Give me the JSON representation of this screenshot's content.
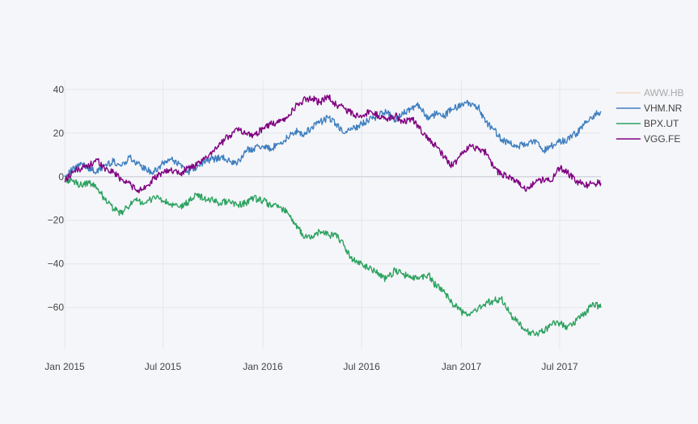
{
  "chart_data": {
    "type": "line",
    "title": "",
    "xlabel": "",
    "ylabel": "",
    "x_range": [
      "2015-01-01",
      "2017-09-15"
    ],
    "ylim": [
      -79,
      44
    ],
    "grid": true,
    "legend_position": "top-right",
    "x_ticks": [
      {
        "date": "2015-01-01",
        "label": "Jan 2015"
      },
      {
        "date": "2015-07-01",
        "label": "Jul 2015"
      },
      {
        "date": "2016-01-01",
        "label": "Jan 2016"
      },
      {
        "date": "2016-07-01",
        "label": "Jul 2016"
      },
      {
        "date": "2017-01-01",
        "label": "Jan 2017"
      },
      {
        "date": "2017-07-01",
        "label": "Jul 2017"
      }
    ],
    "y_ticks": [
      {
        "value": 40,
        "label": "40"
      },
      {
        "value": 20,
        "label": "20"
      },
      {
        "value": 0,
        "label": "0"
      },
      {
        "value": -20,
        "label": "−20"
      },
      {
        "value": -40,
        "label": "−40"
      },
      {
        "value": -60,
        "label": "−60"
      }
    ],
    "series": [
      {
        "name": "AWW.HB",
        "color": "#f5c99a",
        "visible": false,
        "points": []
      },
      {
        "name": "VHM.NR",
        "color": "#3f7fbf",
        "visible": true,
        "points": [
          [
            "2015-01-01",
            0
          ],
          [
            "2015-01-15",
            3
          ],
          [
            "2015-02-01",
            6
          ],
          [
            "2015-02-15",
            4
          ],
          [
            "2015-03-01",
            2
          ],
          [
            "2015-03-15",
            5
          ],
          [
            "2015-04-01",
            7
          ],
          [
            "2015-04-15",
            5
          ],
          [
            "2015-05-01",
            9
          ],
          [
            "2015-05-15",
            6
          ],
          [
            "2015-06-01",
            3
          ],
          [
            "2015-06-15",
            2
          ],
          [
            "2015-07-01",
            6
          ],
          [
            "2015-07-15",
            8
          ],
          [
            "2015-08-01",
            6
          ],
          [
            "2015-08-15",
            2
          ],
          [
            "2015-09-01",
            4
          ],
          [
            "2015-09-15",
            7
          ],
          [
            "2015-10-01",
            8
          ],
          [
            "2015-10-15",
            9
          ],
          [
            "2015-11-01",
            7
          ],
          [
            "2015-11-15",
            6
          ],
          [
            "2015-12-01",
            12
          ],
          [
            "2015-12-15",
            13
          ],
          [
            "2016-01-01",
            14
          ],
          [
            "2016-01-15",
            13
          ],
          [
            "2016-02-01",
            15
          ],
          [
            "2016-02-15",
            18
          ],
          [
            "2016-03-01",
            21
          ],
          [
            "2016-03-15",
            19
          ],
          [
            "2016-04-01",
            23
          ],
          [
            "2016-04-15",
            25
          ],
          [
            "2016-05-01",
            27
          ],
          [
            "2016-05-15",
            24
          ],
          [
            "2016-06-01",
            20
          ],
          [
            "2016-06-15",
            22
          ],
          [
            "2016-07-01",
            24
          ],
          [
            "2016-07-15",
            26
          ],
          [
            "2016-08-01",
            28
          ],
          [
            "2016-08-15",
            30
          ],
          [
            "2016-09-01",
            26
          ],
          [
            "2016-09-15",
            29
          ],
          [
            "2016-10-01",
            31
          ],
          [
            "2016-10-15",
            33
          ],
          [
            "2016-11-01",
            26
          ],
          [
            "2016-11-15",
            29
          ],
          [
            "2016-12-01",
            28
          ],
          [
            "2016-12-15",
            31
          ],
          [
            "2017-01-01",
            33
          ],
          [
            "2017-01-15",
            34
          ],
          [
            "2017-02-01",
            32
          ],
          [
            "2017-02-15",
            25
          ],
          [
            "2017-03-01",
            22
          ],
          [
            "2017-03-15",
            17
          ],
          [
            "2017-04-01",
            15
          ],
          [
            "2017-04-15",
            14
          ],
          [
            "2017-05-01",
            15
          ],
          [
            "2017-05-15",
            17
          ],
          [
            "2017-06-01",
            12
          ],
          [
            "2017-06-15",
            14
          ],
          [
            "2017-07-01",
            16
          ],
          [
            "2017-07-15",
            17
          ],
          [
            "2017-08-01",
            20
          ],
          [
            "2017-08-15",
            24
          ],
          [
            "2017-09-01",
            28
          ],
          [
            "2017-09-15",
            30
          ]
        ]
      },
      {
        "name": "BPX.UT",
        "color": "#2ca25f",
        "visible": true,
        "points": [
          [
            "2015-01-01",
            -1
          ],
          [
            "2015-01-15",
            -2
          ],
          [
            "2015-02-01",
            -4
          ],
          [
            "2015-02-15",
            -3
          ],
          [
            "2015-03-01",
            -5
          ],
          [
            "2015-03-15",
            -10
          ],
          [
            "2015-04-01",
            -15
          ],
          [
            "2015-04-15",
            -17
          ],
          [
            "2015-05-01",
            -13
          ],
          [
            "2015-05-15",
            -11
          ],
          [
            "2015-06-01",
            -12
          ],
          [
            "2015-06-15",
            -9
          ],
          [
            "2015-07-01",
            -11
          ],
          [
            "2015-07-15",
            -13
          ],
          [
            "2015-08-01",
            -14
          ],
          [
            "2015-08-15",
            -12
          ],
          [
            "2015-09-01",
            -8
          ],
          [
            "2015-09-15",
            -10
          ],
          [
            "2015-10-01",
            -11
          ],
          [
            "2015-10-15",
            -12
          ],
          [
            "2015-11-01",
            -11
          ],
          [
            "2015-11-15",
            -13
          ],
          [
            "2015-12-01",
            -12
          ],
          [
            "2015-12-15",
            -10
          ],
          [
            "2016-01-01",
            -11
          ],
          [
            "2016-01-15",
            -13
          ],
          [
            "2016-02-01",
            -14
          ],
          [
            "2016-02-15",
            -16
          ],
          [
            "2016-03-01",
            -22
          ],
          [
            "2016-03-15",
            -27
          ],
          [
            "2016-04-01",
            -28
          ],
          [
            "2016-04-15",
            -25
          ],
          [
            "2016-05-01",
            -27
          ],
          [
            "2016-05-15",
            -26
          ],
          [
            "2016-06-01",
            -33
          ],
          [
            "2016-06-15",
            -38
          ],
          [
            "2016-07-01",
            -40
          ],
          [
            "2016-07-15",
            -42
          ],
          [
            "2016-08-01",
            -44
          ],
          [
            "2016-08-15",
            -47
          ],
          [
            "2016-09-01",
            -43
          ],
          [
            "2016-09-15",
            -45
          ],
          [
            "2016-10-01",
            -46
          ],
          [
            "2016-10-15",
            -47
          ],
          [
            "2016-11-01",
            -45
          ],
          [
            "2016-11-15",
            -50
          ],
          [
            "2016-12-01",
            -53
          ],
          [
            "2016-12-15",
            -58
          ],
          [
            "2017-01-01",
            -62
          ],
          [
            "2017-01-15",
            -63
          ],
          [
            "2017-02-01",
            -60
          ],
          [
            "2017-02-15",
            -58
          ],
          [
            "2017-03-01",
            -57
          ],
          [
            "2017-03-15",
            -56
          ],
          [
            "2017-04-01",
            -63
          ],
          [
            "2017-04-15",
            -67
          ],
          [
            "2017-05-01",
            -71
          ],
          [
            "2017-05-15",
            -72
          ],
          [
            "2017-06-01",
            -71
          ],
          [
            "2017-06-15",
            -68
          ],
          [
            "2017-07-01",
            -67
          ],
          [
            "2017-07-15",
            -69
          ],
          [
            "2017-08-01",
            -66
          ],
          [
            "2017-08-15",
            -63
          ],
          [
            "2017-09-01",
            -58
          ],
          [
            "2017-09-15",
            -60
          ]
        ]
      },
      {
        "name": "VGG.FE",
        "color": "#800080",
        "visible": true,
        "points": [
          [
            "2015-01-01",
            -2
          ],
          [
            "2015-01-15",
            2
          ],
          [
            "2015-02-01",
            4
          ],
          [
            "2015-02-15",
            5
          ],
          [
            "2015-03-01",
            8
          ],
          [
            "2015-03-15",
            4
          ],
          [
            "2015-04-01",
            2
          ],
          [
            "2015-04-15",
            -1
          ],
          [
            "2015-05-01",
            -3
          ],
          [
            "2015-05-15",
            -7
          ],
          [
            "2015-06-01",
            -4
          ],
          [
            "2015-06-15",
            -1
          ],
          [
            "2015-07-01",
            2
          ],
          [
            "2015-07-15",
            3
          ],
          [
            "2015-08-01",
            1
          ],
          [
            "2015-08-15",
            4
          ],
          [
            "2015-09-01",
            5
          ],
          [
            "2015-09-15",
            8
          ],
          [
            "2015-10-01",
            12
          ],
          [
            "2015-10-15",
            15
          ],
          [
            "2015-11-01",
            19
          ],
          [
            "2015-11-15",
            22
          ],
          [
            "2015-12-01",
            20
          ],
          [
            "2015-12-15",
            19
          ],
          [
            "2016-01-01",
            22
          ],
          [
            "2016-01-15",
            24
          ],
          [
            "2016-02-01",
            25
          ],
          [
            "2016-02-15",
            27
          ],
          [
            "2016-03-01",
            32
          ],
          [
            "2016-03-15",
            35
          ],
          [
            "2016-04-01",
            36
          ],
          [
            "2016-04-15",
            34
          ],
          [
            "2016-05-01",
            37
          ],
          [
            "2016-05-15",
            33
          ],
          [
            "2016-06-01",
            31
          ],
          [
            "2016-06-15",
            29
          ],
          [
            "2016-07-01",
            27
          ],
          [
            "2016-07-15",
            30
          ],
          [
            "2016-08-01",
            28
          ],
          [
            "2016-08-15",
            26
          ],
          [
            "2016-09-01",
            28
          ],
          [
            "2016-09-15",
            25
          ],
          [
            "2016-10-01",
            27
          ],
          [
            "2016-10-15",
            22
          ],
          [
            "2016-11-01",
            18
          ],
          [
            "2016-11-15",
            14
          ],
          [
            "2016-12-01",
            9
          ],
          [
            "2016-12-15",
            5
          ],
          [
            "2017-01-01",
            10
          ],
          [
            "2017-01-15",
            14
          ],
          [
            "2017-02-01",
            13
          ],
          [
            "2017-02-15",
            11
          ],
          [
            "2017-03-01",
            4
          ],
          [
            "2017-03-15",
            1
          ],
          [
            "2017-04-01",
            0
          ],
          [
            "2017-04-15",
            -3
          ],
          [
            "2017-05-01",
            -6
          ],
          [
            "2017-05-15",
            -3
          ],
          [
            "2017-06-01",
            -1
          ],
          [
            "2017-06-15",
            -2
          ],
          [
            "2017-07-01",
            4
          ],
          [
            "2017-07-15",
            2
          ],
          [
            "2017-08-01",
            -2
          ],
          [
            "2017-08-15",
            -4
          ],
          [
            "2017-09-01",
            -3
          ],
          [
            "2017-09-15",
            -3
          ]
        ]
      }
    ]
  }
}
